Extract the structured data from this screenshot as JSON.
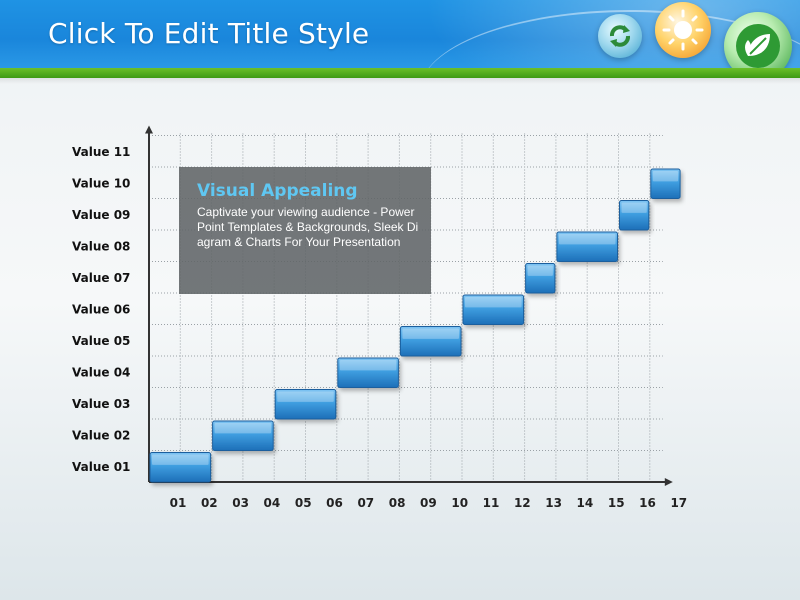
{
  "slide": {
    "title": "Click To Edit Title Style"
  },
  "callout": {
    "title": "Visual Appealing",
    "body": "Captivate your viewing audience - PowerPoint Templates & Backgrounds, Sleek Diagram & Charts For Your Presentation"
  },
  "icons": [
    "recycle-icon",
    "sun-icon",
    "leaf-icon"
  ],
  "colors": {
    "header_blue": "#1a86db",
    "header_green": "#4aa81b",
    "step_blue": "#2f8fd6",
    "callout_bg": "#606466",
    "callout_title": "#5fc7f2"
  },
  "chart_data": {
    "type": "bar",
    "subtype": "staircase",
    "x_labels": [
      "01",
      "02",
      "03",
      "04",
      "05",
      "06",
      "07",
      "08",
      "09",
      "10",
      "11",
      "12",
      "13",
      "14",
      "15",
      "16",
      "17"
    ],
    "y_labels": [
      "Value 01",
      "Value 02",
      "Value 03",
      "Value 04",
      "Value 05",
      "Value 06",
      "Value 07",
      "Value 08",
      "Value 09",
      "Value 10",
      "Value 11"
    ],
    "steps": [
      {
        "level": 1,
        "start": 0,
        "end": 2
      },
      {
        "level": 2,
        "start": 2,
        "end": 4
      },
      {
        "level": 3,
        "start": 4,
        "end": 6
      },
      {
        "level": 4,
        "start": 6,
        "end": 8
      },
      {
        "level": 5,
        "start": 8,
        "end": 10
      },
      {
        "level": 6,
        "start": 10,
        "end": 12
      },
      {
        "level": 7,
        "start": 12,
        "end": 13
      },
      {
        "level": 8,
        "start": 13,
        "end": 15
      },
      {
        "level": 9,
        "start": 15,
        "end": 16
      },
      {
        "level": 10,
        "start": 16,
        "end": 17
      }
    ],
    "grid": true,
    "grid_style": "dotted"
  }
}
